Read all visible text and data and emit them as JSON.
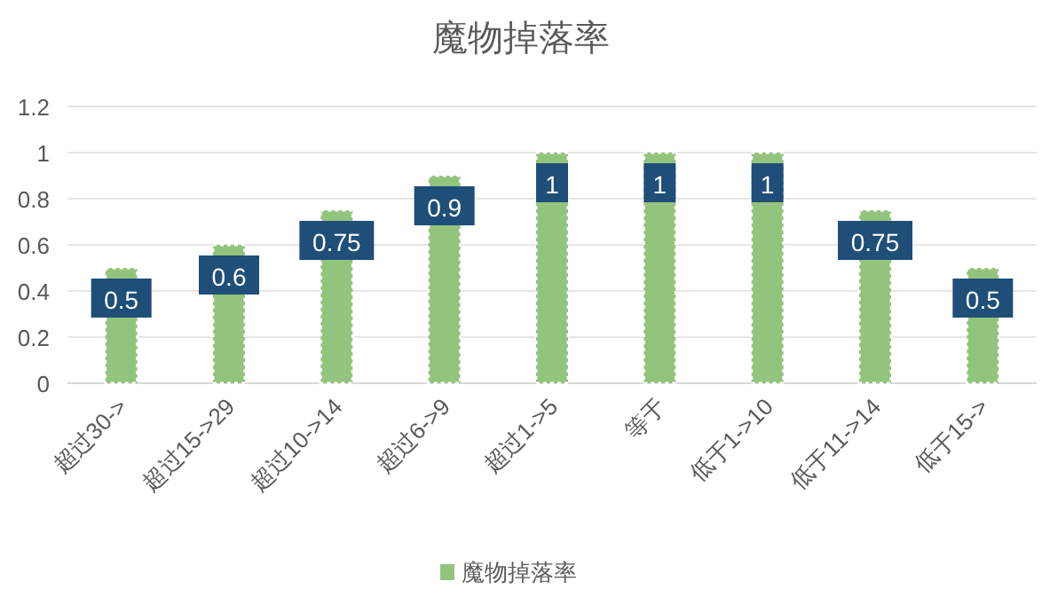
{
  "chart_data": {
    "type": "bar",
    "title": "魔物掉落率",
    "categories": [
      "超过30->",
      "超过15->29",
      "超过10->14",
      "超过6->9",
      "超过1->5",
      "等于",
      "低于1->10",
      "低于11->14",
      "低于15->"
    ],
    "series": [
      {
        "name": "魔物掉落率",
        "color": "#93c47d",
        "values": [
          0.5,
          0.6,
          0.75,
          0.9,
          1,
          1,
          1,
          0.75,
          0.5
        ]
      }
    ],
    "ylim": [
      0,
      1.2
    ],
    "yticks": [
      0,
      0.2,
      0.4,
      0.6,
      0.8,
      1,
      1.2
    ],
    "grid": "y",
    "legend": "bottom",
    "data_labels": true
  }
}
